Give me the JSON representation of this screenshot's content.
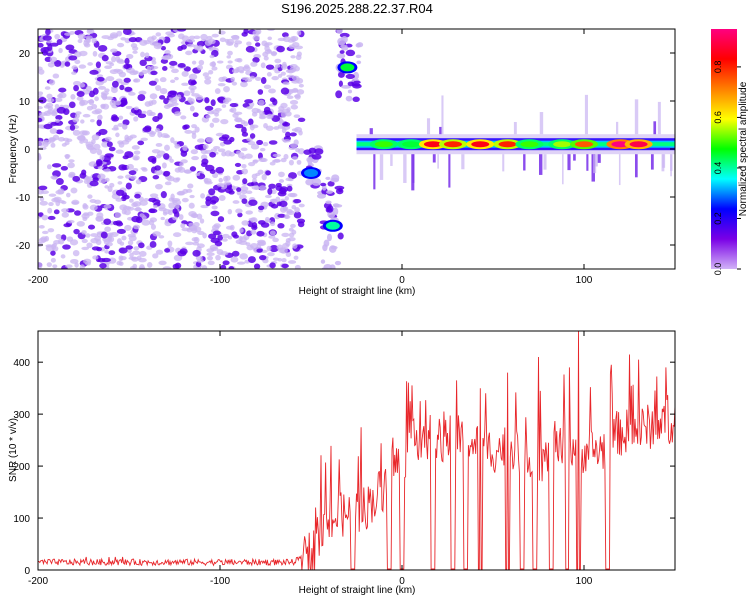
{
  "figure": {
    "title": "S196.2025.288.22.37.R04"
  },
  "colors": {
    "scatter": "#5a00e6",
    "scatter_light": "#c9b4f2",
    "snr_line": "#e8262a",
    "colorbar": [
      "#d1b3f7",
      "#7a00e6",
      "#0000ff",
      "#00ffff",
      "#00ff00",
      "#ffff00",
      "#ff8000",
      "#ff0000",
      "#ff0080"
    ]
  },
  "chart_data": [
    {
      "type": "heatmap",
      "title": "",
      "xlabel": "Height of straight line (km)",
      "ylabel": "Frequency (Hz)",
      "xlim": [
        -200,
        150
      ],
      "ylim": [
        -25,
        25
      ],
      "xticks": [
        "-200",
        "-100",
        "0",
        "100"
      ],
      "xtick_values": [
        -200,
        -100,
        0,
        100
      ],
      "yticks": [
        "-20",
        "-10",
        "0",
        "10",
        "20"
      ],
      "ytick_values": [
        -20,
        -10,
        0,
        10,
        20
      ],
      "colorbar": {
        "label": "Normalized spectral amplitude",
        "ticks": [
          "0.0",
          "0.2",
          "0.4",
          "0.6",
          "0.8"
        ],
        "tick_values": [
          0,
          0.2,
          0.4,
          0.6,
          0.8
        ],
        "range": [
          0,
          0.95
        ]
      },
      "regions": [
        {
          "x": [
            -200,
            -55
          ],
          "y": [
            -25,
            25
          ],
          "description": "scattered low-amplitude noise"
        },
        {
          "x": [
            -35,
            -23
          ],
          "y": [
            10,
            25
          ],
          "peak": [
            -30,
            17
          ],
          "amplitude": 0.45
        },
        {
          "x": [
            -45,
            -33
          ],
          "y": [
            -25,
            -5
          ],
          "peak": [
            -38,
            -16
          ],
          "amplitude": 0.4
        },
        {
          "x": [
            -52,
            -45
          ],
          "y": [
            -10,
            0
          ],
          "peak": [
            -50,
            -5
          ],
          "amplitude": 0.3
        },
        {
          "x": [
            -25,
            150
          ],
          "y": [
            -3,
            3
          ],
          "center_hz": 1,
          "description": "continuous band near 1 Hz"
        }
      ],
      "band_peaks": [
        {
          "x": -10,
          "amplitude": 0.5
        },
        {
          "x": 5,
          "amplitude": 0.45
        },
        {
          "x": 17,
          "amplitude": 0.85
        },
        {
          "x": 28,
          "amplitude": 0.8
        },
        {
          "x": 43,
          "amplitude": 0.85
        },
        {
          "x": 58,
          "amplitude": 0.8
        },
        {
          "x": 70,
          "amplitude": 0.5
        },
        {
          "x": 88,
          "amplitude": 0.55
        },
        {
          "x": 100,
          "amplitude": 0.75
        },
        {
          "x": 120,
          "amplitude": 0.95
        },
        {
          "x": 130,
          "amplitude": 0.9
        }
      ]
    },
    {
      "type": "line",
      "title": "",
      "xlabel": "Height of straight line (km)",
      "ylabel": "SNR (10 * v/v)",
      "xlim": [
        -200,
        150
      ],
      "ylim": [
        0,
        460
      ],
      "xticks": [
        "-200",
        "-100",
        "0",
        "100"
      ],
      "xtick_values": [
        -200,
        -100,
        0,
        100
      ],
      "yticks": [
        "0",
        "100",
        "200",
        "300",
        "400"
      ],
      "ytick_values": [
        0,
        100,
        200,
        300,
        400
      ],
      "series": [
        {
          "x": [
            -200,
            -150,
            -100,
            -60,
            -50,
            -40,
            -30,
            -20,
            -10,
            -5,
            0,
            5,
            10,
            20,
            30,
            40,
            50,
            60,
            70,
            80,
            90,
            100,
            110,
            115,
            130,
            150
          ],
          "y": [
            15,
            15,
            15,
            15,
            30,
            95,
            110,
            120,
            160,
            200,
            210,
            240,
            260,
            250,
            255,
            240,
            230,
            240,
            220,
            210,
            240,
            230,
            230,
            260,
            270,
            290
          ],
          "dropouts": [
            -27,
            -7,
            0,
            17,
            28,
            35,
            43,
            58,
            66,
            73,
            82,
            91,
            97,
            113
          ],
          "spikes": [
            {
              "x": 10,
              "y": 325
            },
            {
              "x": 30,
              "y": 365
            },
            {
              "x": 43,
              "y": 350
            },
            {
              "x": 58,
              "y": 380
            },
            {
              "x": 75,
              "y": 410
            },
            {
              "x": 92,
              "y": 390
            },
            {
              "x": 97,
              "y": 460
            },
            {
              "x": 115,
              "y": 395
            },
            {
              "x": 130,
              "y": 405
            },
            {
              "x": 145,
              "y": 390
            }
          ]
        }
      ]
    }
  ]
}
